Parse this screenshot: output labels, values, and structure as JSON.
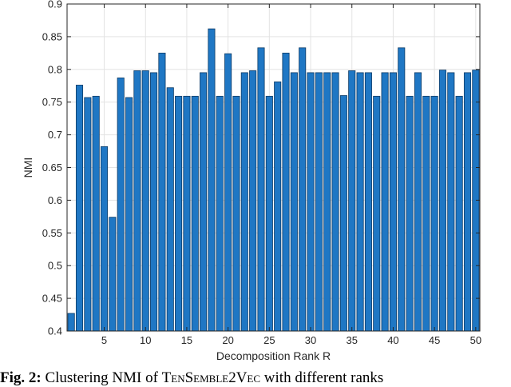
{
  "chart_data": {
    "type": "bar",
    "xlabel": "Decomposition Rank R",
    "ylabel": "NMI",
    "xlim": [
      0.5,
      50.5
    ],
    "ylim": [
      0.4,
      0.9
    ],
    "xticks": [
      5,
      10,
      15,
      20,
      25,
      30,
      35,
      40,
      45,
      50
    ],
    "yticks": [
      0.4,
      0.45,
      0.5,
      0.55,
      0.6,
      0.65,
      0.7,
      0.75,
      0.8,
      0.85,
      0.9
    ],
    "grid": true,
    "bar_color": "#1f77c4",
    "bar_edge_color": "#0d3b66",
    "x": [
      1,
      2,
      3,
      4,
      5,
      6,
      7,
      8,
      9,
      10,
      11,
      12,
      13,
      14,
      15,
      16,
      17,
      18,
      19,
      20,
      21,
      22,
      23,
      24,
      25,
      26,
      27,
      28,
      29,
      30,
      31,
      32,
      33,
      34,
      35,
      36,
      37,
      38,
      39,
      40,
      41,
      42,
      43,
      44,
      45,
      46,
      47,
      48,
      49,
      50
    ],
    "values": [
      0.427,
      0.776,
      0.757,
      0.759,
      0.682,
      0.574,
      0.787,
      0.757,
      0.798,
      0.798,
      0.795,
      0.825,
      0.772,
      0.759,
      0.759,
      0.759,
      0.795,
      0.862,
      0.759,
      0.824,
      0.759,
      0.795,
      0.798,
      0.833,
      0.759,
      0.781,
      0.825,
      0.795,
      0.833,
      0.795,
      0.795,
      0.795,
      0.795,
      0.76,
      0.798,
      0.795,
      0.795,
      0.759,
      0.795,
      0.795,
      0.833,
      0.759,
      0.795,
      0.759,
      0.759,
      0.799,
      0.795,
      0.759,
      0.795,
      0.799
    ]
  },
  "caption": {
    "fig_label": "Fig. 2:",
    "text_before": " Clustering NMI of ",
    "method": "TenSemble2Vec",
    "text_after": " with different ranks"
  }
}
